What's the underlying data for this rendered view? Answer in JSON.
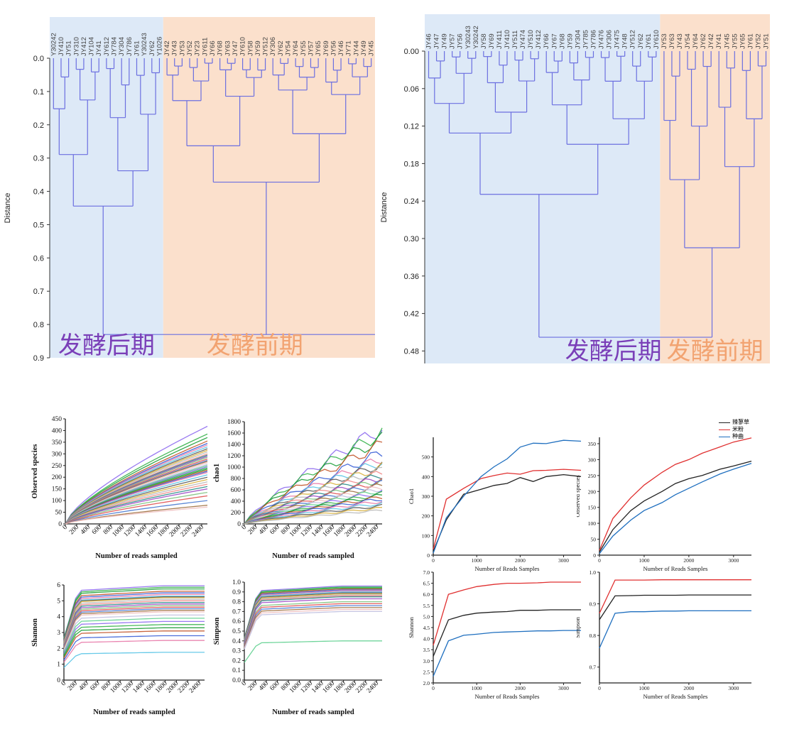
{
  "colors": {
    "dendro_line": "#6b6fe0",
    "late_bg": "#dde9f7",
    "early_bg": "#fbe0cc",
    "late_text": "#7a3fb8",
    "early_text": "#f2a371",
    "spicy": "#222222",
    "rice": "#e03030",
    "qu": "#1f6fbf"
  },
  "chart_data": [
    {
      "type": "dendrogram",
      "ylabel": "Distance",
      "ylim": [
        0,
        0.9
      ],
      "yticks": [
        "0.0",
        "0.1",
        "0.2",
        "0.3",
        "0.4",
        "0.5",
        "0.6",
        "0.7",
        "0.8",
        "0.9"
      ],
      "leaves": [
        "Y30242",
        "JY410",
        "JY51",
        "JY310",
        "JY412",
        "JY104",
        "JY41",
        "JY612",
        "JY784",
        "JY304",
        "JY786",
        "JY61",
        "Y30243",
        "JY62",
        "Y1026",
        "JY42",
        "JY43",
        "JY53",
        "JY52",
        "JY23",
        "JY611",
        "JY66",
        "JY68",
        "JY63",
        "JY47",
        "JY610",
        "JY58",
        "JY59",
        "JY512",
        "JY306",
        "JY62",
        "JY54",
        "JY64",
        "JY55",
        "JY57",
        "JY65",
        "JY69",
        "JY56",
        "JY46",
        "JY71",
        "JY44",
        "JY49",
        "JY45"
      ],
      "late_leaf_count": 15,
      "late_label": "发酵后期",
      "early_label": "发酵前期"
    },
    {
      "type": "dendrogram",
      "ylabel": "Distance",
      "ylim": [
        0,
        0.5
      ],
      "yticks": [
        "0.00",
        "0.06",
        "0.12",
        "0.18",
        "0.24",
        "0.30",
        "0.36",
        "0.42",
        "0.48"
      ],
      "leaves": [
        "JY46",
        "JY47",
        "JY49",
        "JY57",
        "JY56",
        "Y30243",
        "Y30242",
        "JY58",
        "JY69",
        "JY411",
        "JY410",
        "JY511",
        "JY474",
        "JY510",
        "JY412",
        "JY66",
        "JY67",
        "JY68",
        "JY59",
        "JY304",
        "JY785",
        "JY786",
        "JY476",
        "JY306",
        "JY475",
        "JY48",
        "JY512",
        "JY62",
        "JY61",
        "JY610",
        "JY53",
        "JY63",
        "JY43",
        "JY54",
        "JY64",
        "JY62",
        "JY42",
        "JY41",
        "JY45",
        "JY55",
        "JY65",
        "JY61",
        "JY52",
        "JY51"
      ],
      "late_leaf_count": 30,
      "late_label": "发酵后期",
      "early_label": "发酵前期"
    },
    {
      "type": "line",
      "ylabel": "Observed species",
      "xlabel": "Number of reads sampled",
      "xticks": [
        "0",
        "200",
        "400",
        "600",
        "800",
        "1000",
        "1200",
        "1400",
        "1600",
        "1800",
        "2000",
        "2200",
        "2400"
      ],
      "yticks": [
        "0",
        "50",
        "100",
        "150",
        "200",
        "250",
        "300",
        "350",
        "400",
        "450"
      ],
      "xlim": [
        0,
        2500
      ],
      "ylim": [
        0,
        450
      ],
      "series_endpoints": [
        418,
        385,
        370,
        355,
        345,
        338,
        330,
        322,
        315,
        308,
        300,
        295,
        290,
        285,
        278,
        272,
        268,
        262,
        255,
        250,
        245,
        240,
        235,
        230,
        225,
        220,
        210,
        200,
        190,
        180,
        170,
        160,
        150,
        135,
        120,
        100,
        80,
        72
      ]
    },
    {
      "type": "line",
      "ylabel": "chao1",
      "xlabel": "Number of reads sampled",
      "xticks": [
        "0",
        "200",
        "400",
        "600",
        "800",
        "1000",
        "1200",
        "1400",
        "1600",
        "1800",
        "2000",
        "2200",
        "2400"
      ],
      "yticks": [
        "0",
        "200",
        "400",
        "600",
        "800",
        "1000",
        "1200",
        "1400",
        "1600",
        "1800"
      ],
      "xlim": [
        0,
        2500
      ],
      "ylim": [
        0,
        1800
      ],
      "series_endpoints": [
        1680,
        1600,
        1500,
        1400,
        1250,
        1150,
        1100,
        1050,
        1000,
        950,
        900,
        860,
        820,
        780,
        750,
        720,
        680,
        650,
        620,
        590,
        560,
        530,
        500,
        470,
        440,
        400,
        360,
        320,
        280,
        240
      ]
    },
    {
      "type": "line",
      "ylabel": "Shannon",
      "xlabel": "Number of reads sampled",
      "xticks": [
        "0",
        "200",
        "400",
        "600",
        "800",
        "1000",
        "1200",
        "1400",
        "1600",
        "1800",
        "2000",
        "2200",
        "2400"
      ],
      "yticks": [
        "0",
        "1",
        "2",
        "3",
        "4",
        "5",
        "6"
      ],
      "xlim": [
        0,
        2500
      ],
      "ylim": [
        0,
        6
      ],
      "series_endpoints": [
        5.95,
        5.85,
        5.75,
        5.6,
        5.5,
        5.4,
        5.3,
        5.25,
        5.2,
        5.1,
        5.0,
        4.9,
        4.8,
        4.7,
        4.6,
        4.5,
        4.4,
        4.3,
        4.1,
        3.9,
        3.7,
        3.5,
        3.3,
        3.1,
        2.8,
        2.5,
        1.75
      ]
    },
    {
      "type": "line",
      "ylabel": "Simpson",
      "xlabel": "Number of reads sampled",
      "xticks": [
        "0",
        "200",
        "400",
        "600",
        "800",
        "1000",
        "1200",
        "1400",
        "1600",
        "1800",
        "2000",
        "2200",
        "2400"
      ],
      "yticks": [
        "0.0",
        "0.1",
        "0.2",
        "0.3",
        "0.4",
        "0.5",
        "0.6",
        "0.7",
        "0.8",
        "0.9",
        "1.0"
      ],
      "xlim": [
        0,
        2500
      ],
      "ylim": [
        0,
        1.0
      ],
      "series_endpoints": [
        0.96,
        0.95,
        0.94,
        0.93,
        0.92,
        0.91,
        0.9,
        0.89,
        0.88,
        0.87,
        0.86,
        0.85,
        0.83,
        0.8,
        0.78,
        0.76,
        0.74,
        0.72,
        0.7,
        0.4
      ]
    },
    {
      "type": "line",
      "ylabel": "Chao1",
      "xlabel": "Number of Reads Samples",
      "xticks": [
        "0",
        "1000",
        "2000",
        "3000"
      ],
      "yticks": [
        "0",
        "100",
        "200",
        "300",
        "400",
        "500"
      ],
      "xlim": [
        0,
        3400
      ],
      "ylim": [
        0,
        600
      ],
      "series": [
        {
          "name": "辣蓼草",
          "x": [
            0,
            300,
            700,
            1100,
            1400,
            1700,
            2000,
            2300,
            2600,
            3000,
            3400
          ],
          "values": [
            20,
            180,
            310,
            335,
            355,
            365,
            395,
            375,
            400,
            410,
            400
          ]
        },
        {
          "name": "米粉",
          "x": [
            0,
            300,
            700,
            1100,
            1400,
            1700,
            2000,
            2300,
            2600,
            3000,
            3400
          ],
          "values": [
            30,
            285,
            340,
            390,
            405,
            418,
            412,
            430,
            432,
            437,
            432
          ]
        },
        {
          "name": "种曲",
          "x": [
            0,
            300,
            700,
            1100,
            1400,
            1700,
            2000,
            2300,
            2600,
            3000,
            3400
          ],
          "values": [
            10,
            190,
            300,
            400,
            450,
            490,
            550,
            570,
            568,
            585,
            580
          ]
        }
      ]
    },
    {
      "type": "line",
      "ylabel": "Observed species",
      "xlabel": "Number of Reads Samples",
      "xticks": [
        "0",
        "1000",
        "2000",
        "3000"
      ],
      "yticks": [
        "0",
        "50",
        "100",
        "150",
        "200",
        "250",
        "300",
        "350"
      ],
      "xlim": [
        0,
        3400
      ],
      "ylim": [
        0,
        370
      ],
      "series": [
        {
          "name": "辣蓼草",
          "x": [
            0,
            300,
            700,
            1000,
            1400,
            1700,
            2000,
            2300,
            2700,
            3000,
            3400
          ],
          "values": [
            10,
            80,
            140,
            170,
            200,
            225,
            240,
            250,
            270,
            280,
            295
          ]
        },
        {
          "name": "米粉",
          "x": [
            0,
            300,
            700,
            1000,
            1400,
            1700,
            2000,
            2300,
            2700,
            3000,
            3400
          ],
          "values": [
            15,
            115,
            180,
            220,
            260,
            285,
            300,
            320,
            340,
            355,
            368
          ]
        },
        {
          "name": "种曲",
          "x": [
            0,
            300,
            700,
            1000,
            1400,
            1700,
            2000,
            2300,
            2700,
            3000,
            3400
          ],
          "values": [
            5,
            60,
            110,
            140,
            165,
            190,
            210,
            230,
            255,
            270,
            288
          ]
        }
      ]
    },
    {
      "type": "line",
      "ylabel": "Shannon",
      "xlabel": "Number of Reads Samples",
      "xticks": [
        "0",
        "1000",
        "2000",
        "3000"
      ],
      "yticks": [
        "2.0",
        "2.5",
        "3.0",
        "3.5",
        "4.0",
        "4.5",
        "5.0",
        "5.5",
        "6.0",
        "6.5",
        "7.0"
      ],
      "xlim": [
        0,
        3400
      ],
      "ylim": [
        2.0,
        7.0
      ],
      "series": [
        {
          "name": "辣蓼草",
          "x": [
            0,
            350,
            700,
            1000,
            1400,
            1700,
            2000,
            2400,
            2700,
            3000,
            3400
          ],
          "values": [
            3.2,
            4.85,
            5.05,
            5.15,
            5.2,
            5.22,
            5.28,
            5.28,
            5.3,
            5.3,
            5.3
          ]
        },
        {
          "name": "米粉",
          "x": [
            0,
            350,
            700,
            1000,
            1400,
            1700,
            2000,
            2400,
            2700,
            3000,
            3400
          ],
          "values": [
            3.7,
            6.0,
            6.2,
            6.35,
            6.45,
            6.5,
            6.5,
            6.52,
            6.55,
            6.55,
            6.55
          ]
        },
        {
          "name": "种曲",
          "x": [
            0,
            350,
            700,
            1000,
            1400,
            1700,
            2000,
            2400,
            2700,
            3000,
            3400
          ],
          "values": [
            2.3,
            3.9,
            4.15,
            4.2,
            4.28,
            4.3,
            4.32,
            4.35,
            4.35,
            4.37,
            4.37
          ]
        }
      ]
    },
    {
      "type": "line",
      "ylabel": "Simpson",
      "xlabel": "Number of Reads Samples",
      "xticks": [
        "0",
        "1000",
        "2000",
        "3000"
      ],
      "yticks": [
        "0.7",
        "0.8",
        "0.9",
        "1.0"
      ],
      "xlim": [
        0,
        3400
      ],
      "ylim": [
        0.65,
        1.0
      ],
      "series": [
        {
          "name": "辣蓼草",
          "x": [
            0,
            350,
            700,
            1000,
            1400,
            1700,
            2000,
            2400,
            2700,
            3000,
            3400
          ],
          "values": [
            0.85,
            0.925,
            0.926,
            0.927,
            0.927,
            0.927,
            0.928,
            0.928,
            0.928,
            0.928,
            0.928
          ]
        },
        {
          "name": "米粉",
          "x": [
            0,
            350,
            700,
            1000,
            1400,
            1700,
            2000,
            2400,
            2700,
            3000,
            3400
          ],
          "values": [
            0.87,
            0.975,
            0.975,
            0.975,
            0.976,
            0.976,
            0.976,
            0.976,
            0.976,
            0.976,
            0.976
          ]
        },
        {
          "name": "种曲",
          "x": [
            0,
            350,
            700,
            1000,
            1400,
            1700,
            2000,
            2400,
            2700,
            3000,
            3400
          ],
          "values": [
            0.76,
            0.87,
            0.875,
            0.875,
            0.877,
            0.877,
            0.878,
            0.878,
            0.878,
            0.878,
            0.878
          ]
        }
      ]
    }
  ],
  "legend": [
    "辣蓼草",
    "米粉",
    "种曲"
  ]
}
